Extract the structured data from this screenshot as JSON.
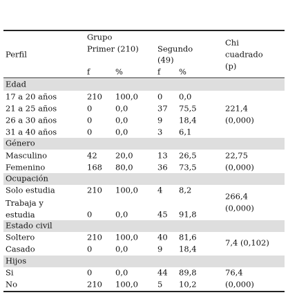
{
  "header": {
    "perfil": "Perfil",
    "grupo": "Grupo",
    "primer": "Primer (210)",
    "segundo": "Segundo",
    "segundo_n": "(49)",
    "chi": [
      "Chi",
      "cuadrado",
      "(p)"
    ],
    "f1": "f",
    "p1": "%",
    "f2": "f",
    "p2": "%"
  },
  "sections": [
    {
      "title": "Edad",
      "rows": [
        [
          "17 a 20 años",
          "210",
          "100,0",
          "0",
          "0,0"
        ],
        [
          "21 a 25 años",
          "0",
          "0,0",
          "37",
          "75,5"
        ],
        [
          "26 a 30 años",
          "0",
          "0,0",
          "9",
          "18,4"
        ],
        [
          "31 a 40 años",
          "0",
          "0,0",
          "3",
          "6,1"
        ]
      ],
      "chi": [
        "221,4",
        "(0,000)"
      ]
    },
    {
      "title": "Género",
      "rows": [
        [
          "Masculino",
          "42",
          "20,0",
          "13",
          "26,5"
        ],
        [
          "Femenino",
          "168",
          "80,0",
          "36",
          "73,5"
        ]
      ],
      "chi": [
        "22,75",
        "(0,000)"
      ]
    },
    {
      "title": "Ocupación",
      "rows": [
        [
          "Solo estudia",
          "210",
          "100,0",
          "4",
          "8,2"
        ],
        [
          "Trabaja y estudia",
          "0",
          "0,0",
          "45",
          "91,8"
        ]
      ],
      "chi": [
        "266,4",
        "(0,000)"
      ]
    },
    {
      "title": "Estado civil",
      "rows": [
        [
          "Soltero",
          "210",
          "100,0",
          "40",
          "81,6"
        ],
        [
          "Casado",
          "0",
          "0,0",
          "9",
          "18,4"
        ]
      ],
      "chi": [
        "7,4 (0,102)"
      ]
    },
    {
      "title": "Hijos",
      "rows": [
        [
          "Si",
          "0",
          "0,0",
          "44",
          "89,8"
        ],
        [
          "No",
          "210",
          "100,0",
          "5",
          "10,2"
        ]
      ],
      "chi": [
        "76,4",
        "(0,000)"
      ]
    }
  ]
}
